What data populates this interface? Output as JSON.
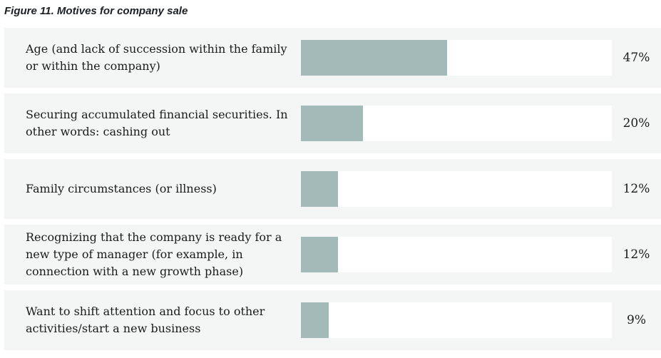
{
  "title": "Figure 11. Motives for company sale",
  "colors": {
    "bar_fill": "#a3bab9",
    "row_background": "#f4f6f5",
    "track_background": "#ffffff",
    "text": "#1b1b1b"
  },
  "chart_data": {
    "type": "bar",
    "orientation": "horizontal",
    "title": "Figure 11. Motives for company sale",
    "categories": [
      "Age (and lack of succession within the family or within the company)",
      "Securing accumulated financial securities. In other words: cashing out",
      "Family circumstances (or illness)",
      "Recognizing that the company is ready for a new type of manager (for example, in connection with a new growth phase)",
      "Want to shift attention and focus to other activities/start a new business"
    ],
    "values": [
      47,
      20,
      12,
      12,
      9
    ],
    "value_labels": [
      "47%",
      "20%",
      "12%",
      "12%",
      "9%"
    ],
    "unit": "%",
    "xlim": [
      0,
      100
    ],
    "grid": false,
    "legend": false
  }
}
